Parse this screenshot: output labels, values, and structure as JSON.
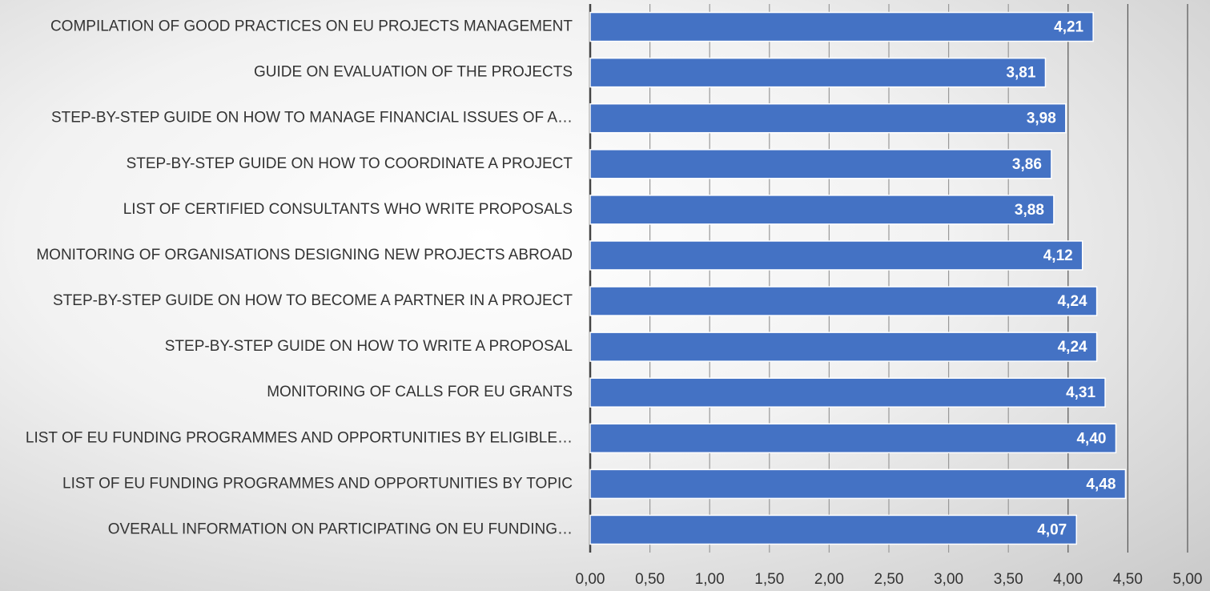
{
  "chart_data": {
    "type": "hbar",
    "categories": [
      "COMPILATION OF GOOD PRACTICES ON EU PROJECTS MANAGEMENT",
      "GUIDE ON EVALUATION OF THE PROJECTS",
      "STEP-BY-STEP GUIDE ON HOW TO MANAGE FINANCIAL ISSUES OF A…",
      "STEP-BY-STEP GUIDE ON HOW TO COORDINATE A PROJECT",
      "LIST OF CERTIFIED CONSULTANTS WHO WRITE PROPOSALS",
      "MONITORING OF ORGANISATIONS DESIGNING NEW PROJECTS ABROAD",
      "STEP-BY-STEP GUIDE ON HOW TO BECOME A PARTNER IN A PROJECT",
      "STEP-BY-STEP GUIDE ON HOW TO WRITE A PROPOSAL",
      "MONITORING OF CALLS FOR EU GRANTS",
      "LIST OF EU FUNDING PROGRAMMES AND OPPORTUNITIES BY ELIGIBLE…",
      "LIST OF EU FUNDING PROGRAMMES AND OPPORTUNITIES BY TOPIC",
      "OVERALL INFORMATION ON PARTICIPATING ON EU FUNDING…"
    ],
    "values": [
      4.21,
      3.81,
      3.98,
      3.86,
      3.88,
      4.12,
      4.24,
      4.24,
      4.31,
      4.4,
      4.48,
      4.07
    ],
    "value_labels": [
      "4,21",
      "3,81",
      "3,98",
      "3,86",
      "3,88",
      "4,12",
      "4,24",
      "4,24",
      "4,31",
      "4,40",
      "4,48",
      "4,07"
    ],
    "color": "#4472c4",
    "xlim": [
      0,
      5
    ],
    "xticks": [
      {
        "value": 0,
        "label": "0,00"
      },
      {
        "value": 0.5,
        "label": "0,50"
      },
      {
        "value": 1,
        "label": "1,00"
      },
      {
        "value": 1.5,
        "label": "1,50"
      },
      {
        "value": 2,
        "label": "2,00"
      },
      {
        "value": 2.5,
        "label": "2,50"
      },
      {
        "value": 3,
        "label": "3,00"
      },
      {
        "value": 3.5,
        "label": "3,50"
      },
      {
        "value": 4,
        "label": "4,00"
      },
      {
        "value": 4.5,
        "label": "4,50"
      },
      {
        "value": 5,
        "label": "5,00"
      }
    ],
    "grid": true
  }
}
